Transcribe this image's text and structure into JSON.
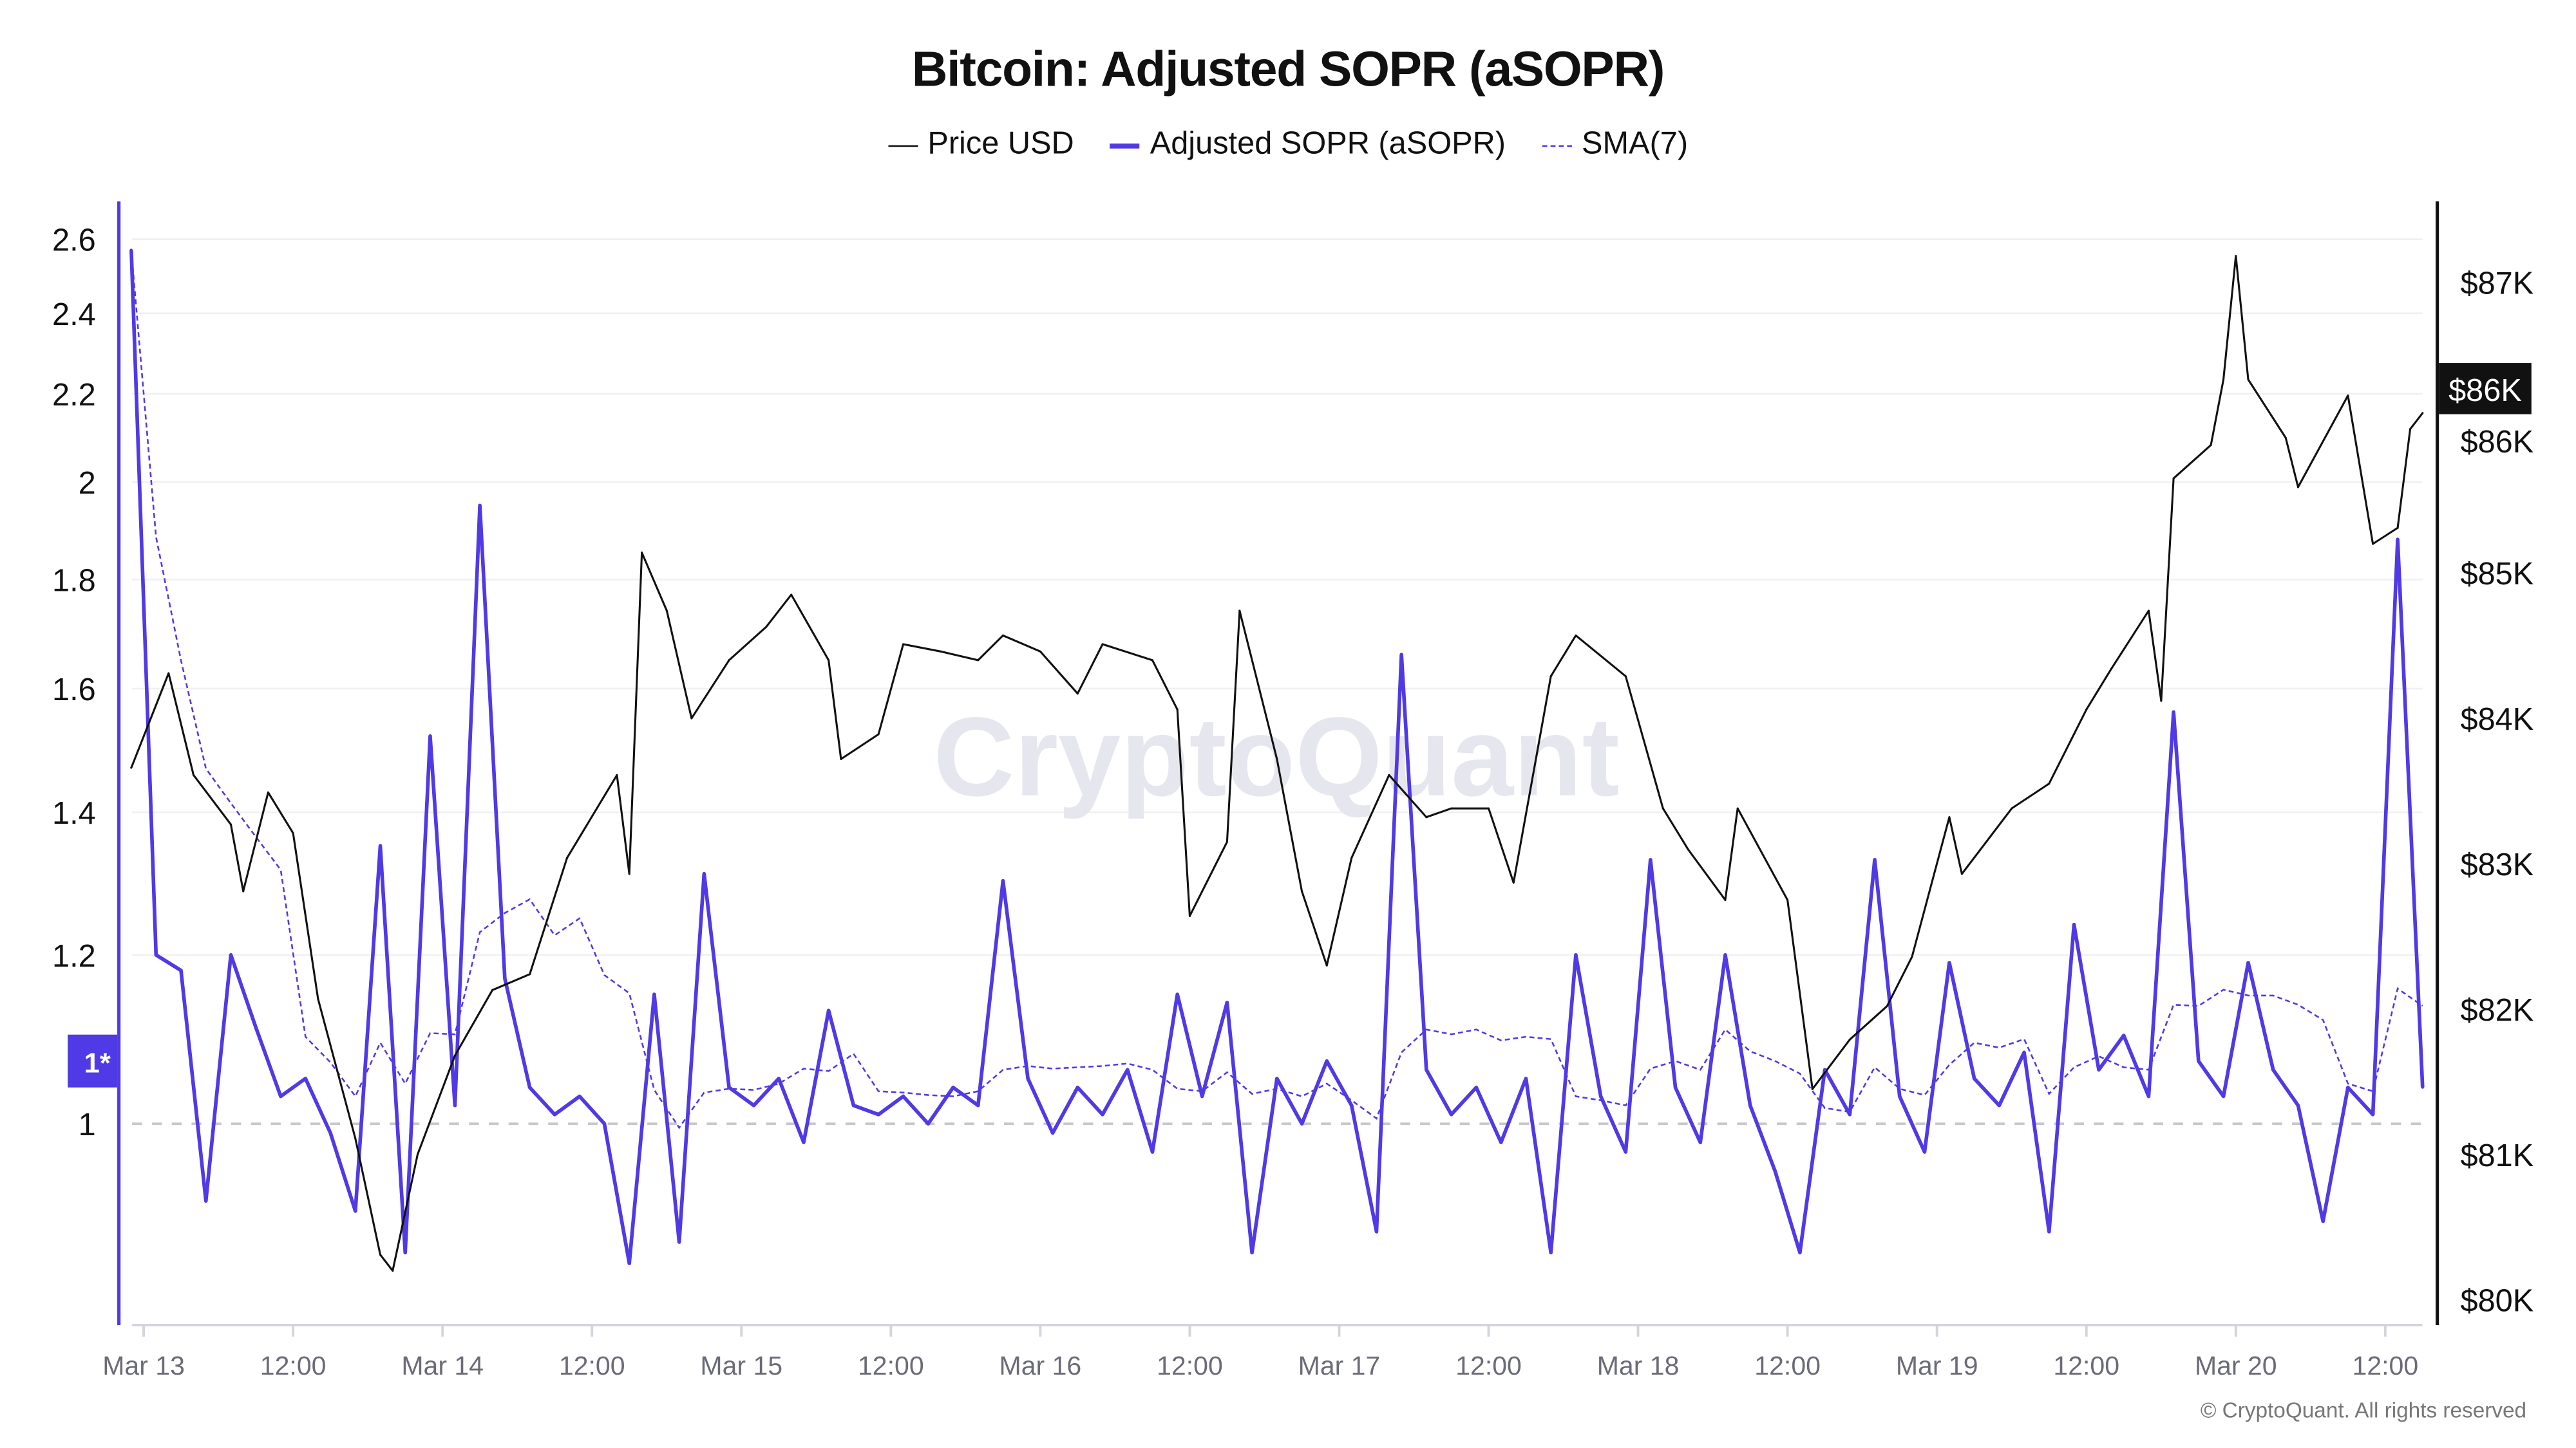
{
  "chart_data": {
    "type": "line",
    "title": "Bitcoin: Adjusted SOPR (aSOPR)",
    "legend": {
      "placement": "top-center",
      "items": [
        "Price USD",
        "Adjusted SOPR (aSOPR)",
        "SMA(7)"
      ]
    },
    "colors": {
      "price": "#111111",
      "asopr": "#4f3ae6",
      "sma": "#4f3ae6",
      "current_price_badge": "#111111",
      "reference_badge": "#4f3ae6"
    },
    "x_axis": {
      "type": "time",
      "tick_labels": [
        "Mar 13",
        "12:00",
        "Mar 14",
        "12:00",
        "Mar 15",
        "12:00",
        "Mar 16",
        "12:00",
        "Mar 17",
        "12:00",
        "Mar 18",
        "12:00",
        "Mar 19",
        "12:00",
        "Mar 20",
        "12:00"
      ]
    },
    "y_left": {
      "scale": "log",
      "tick_labels": [
        "2.6",
        "2.4",
        "2.2",
        "2",
        "1.8",
        "1.6",
        "1.4",
        "1.2",
        "1"
      ],
      "ticks": [
        2.6,
        2.4,
        2.2,
        2,
        1.8,
        1.6,
        1.4,
        1.2,
        1
      ],
      "range": [
        0.8,
        2.7
      ],
      "reference_line": 1,
      "reference_label": "1*"
    },
    "y_right": {
      "scale": "linear",
      "tick_labels": [
        "$87K",
        "$86K",
        "$85K",
        "$84K",
        "$83K",
        "$82K",
        "$81K",
        "$80K"
      ],
      "ticks": [
        87000,
        86000,
        85000,
        84000,
        83000,
        82000,
        81000,
        80000
      ],
      "range": [
        79830,
        87570
      ],
      "current_label": "$86K"
    },
    "grid": true,
    "series": [
      {
        "name": "Price USD",
        "axis": "right",
        "points": [
          [
            "Mar 12 23:00",
            83660
          ],
          [
            "Mar 13 02:00",
            84310
          ],
          [
            "Mar 13 04:00",
            83610
          ],
          [
            "Mar 13 07:00",
            83270
          ],
          [
            "Mar 13 08:00",
            82810
          ],
          [
            "Mar 13 10:00",
            83490
          ],
          [
            "Mar 13 12:00",
            83210
          ],
          [
            "Mar 13 14:00",
            82070
          ],
          [
            "Mar 13 17:00",
            81110
          ],
          [
            "Mar 13 19:00",
            80310
          ],
          [
            "Mar 13 20:00",
            80200
          ],
          [
            "Mar 13 22:00",
            81000
          ],
          [
            "Mar 14 01:00",
            81680
          ],
          [
            "Mar 14 04:00",
            82130
          ],
          [
            "Mar 14 07:00",
            82240
          ],
          [
            "Mar 14 10:00",
            83040
          ],
          [
            "Mar 14 14:00",
            83610
          ],
          [
            "Mar 14 15:00",
            82930
          ],
          [
            "Mar 14 16:00",
            85140
          ],
          [
            "Mar 14 18:00",
            84740
          ],
          [
            "Mar 14 20:00",
            84000
          ],
          [
            "Mar 14 23:00",
            84400
          ],
          [
            "Mar 15 02:00",
            84630
          ],
          [
            "Mar 15 04:00",
            84850
          ],
          [
            "Mar 15 07:00",
            84400
          ],
          [
            "Mar 15 08:00",
            83720
          ],
          [
            "Mar 15 11:00",
            83890
          ],
          [
            "Mar 15 13:00",
            84510
          ],
          [
            "Mar 15 16:00",
            84460
          ],
          [
            "Mar 15 19:00",
            84400
          ],
          [
            "Mar 15 21:00",
            84570
          ],
          [
            "Mar 16 00:00",
            84460
          ],
          [
            "Mar 16 03:00",
            84170
          ],
          [
            "Mar 16 05:00",
            84510
          ],
          [
            "Mar 16 09:00",
            84400
          ],
          [
            "Mar 16 11:00",
            84060
          ],
          [
            "Mar 16 12:00",
            82640
          ],
          [
            "Mar 16 15:00",
            83150
          ],
          [
            "Mar 16 16:00",
            84740
          ],
          [
            "Mar 16 19:00",
            83720
          ],
          [
            "Mar 16 21:00",
            82810
          ],
          [
            "Mar 16 23:00",
            82300
          ],
          [
            "Mar 17 01:00",
            83040
          ],
          [
            "Mar 17 04:00",
            83610
          ],
          [
            "Mar 17 07:00",
            83320
          ],
          [
            "Mar 17 09:00",
            83380
          ],
          [
            "Mar 17 12:00",
            83380
          ],
          [
            "Mar 17 14:00",
            82870
          ],
          [
            "Mar 17 17:00",
            84290
          ],
          [
            "Mar 17 19:00",
            84570
          ],
          [
            "Mar 17 23:00",
            84290
          ],
          [
            "Mar 18 02:00",
            83380
          ],
          [
            "Mar 18 04:00",
            83100
          ],
          [
            "Mar 18 07:00",
            82750
          ],
          [
            "Mar 18 08:00",
            83380
          ],
          [
            "Mar 18 12:00",
            82750
          ],
          [
            "Mar 18 14:00",
            81450
          ],
          [
            "Mar 18 17:00",
            81790
          ],
          [
            "Mar 18 20:00",
            82020
          ],
          [
            "Mar 18 22:00",
            82360
          ],
          [
            "Mar 19 01:00",
            83320
          ],
          [
            "Mar 19 02:00",
            82930
          ],
          [
            "Mar 19 06:00",
            83380
          ],
          [
            "Mar 19 09:00",
            83550
          ],
          [
            "Mar 19 12:00",
            84060
          ],
          [
            "Mar 19 14:00",
            84340
          ],
          [
            "Mar 19 17:00",
            84740
          ],
          [
            "Mar 19 18:00",
            84120
          ],
          [
            "Mar 19 19:00",
            85650
          ],
          [
            "Mar 19 22:00",
            85880
          ],
          [
            "Mar 19 23:00",
            86330
          ],
          [
            "Mar 20 00:00",
            87180
          ],
          [
            "Mar 20 01:00",
            86330
          ],
          [
            "Mar 20 04:00",
            85930
          ],
          [
            "Mar 20 05:00",
            85590
          ],
          [
            "Mar 20 09:00",
            86220
          ],
          [
            "Mar 20 11:00",
            85200
          ],
          [
            "Mar 20 13:00",
            85310
          ],
          [
            "Mar 20 14:00",
            85990
          ],
          [
            "Mar 20 15:00",
            86100
          ]
        ]
      },
      {
        "name": "Adjusted SOPR (aSOPR)",
        "axis": "left",
        "time_start": "Mar 12 23:00",
        "interval_hours": 2,
        "values": [
          2.57,
          1.2,
          1.18,
          0.92,
          1.2,
          1.11,
          1.03,
          1.05,
          0.99,
          0.91,
          1.35,
          0.87,
          1.52,
          1.02,
          1.95,
          1.17,
          1.04,
          1.01,
          1.03,
          1.0,
          0.86,
          1.15,
          0.88,
          1.31,
          1.04,
          1.02,
          1.05,
          0.98,
          1.13,
          1.02,
          1.01,
          1.03,
          1.0,
          1.04,
          1.02,
          1.3,
          1.05,
          0.99,
          1.04,
          1.01,
          1.06,
          0.97,
          1.15,
          1.03,
          1.14,
          0.87,
          1.05,
          1.0,
          1.07,
          1.02,
          0.89,
          1.66,
          1.06,
          1.01,
          1.04,
          0.98,
          1.05,
          0.87,
          1.2,
          1.03,
          0.97,
          1.33,
          1.04,
          0.98,
          1.2,
          1.02,
          0.95,
          0.87,
          1.06,
          1.01,
          1.33,
          1.03,
          0.97,
          1.19,
          1.05,
          1.02,
          1.08,
          0.89,
          1.24,
          1.06,
          1.1,
          1.03,
          1.56,
          1.07,
          1.03,
          1.19,
          1.06,
          1.02,
          0.9,
          1.04,
          1.01,
          1.88,
          1.04
        ]
      },
      {
        "name": "SMA(7)",
        "axis": "left",
        "derived_from": "Adjusted SOPR (aSOPR)",
        "window": 7
      }
    ]
  },
  "watermark": "CryptoQuant",
  "copyright": "© CryptoQuant. All rights reserved"
}
